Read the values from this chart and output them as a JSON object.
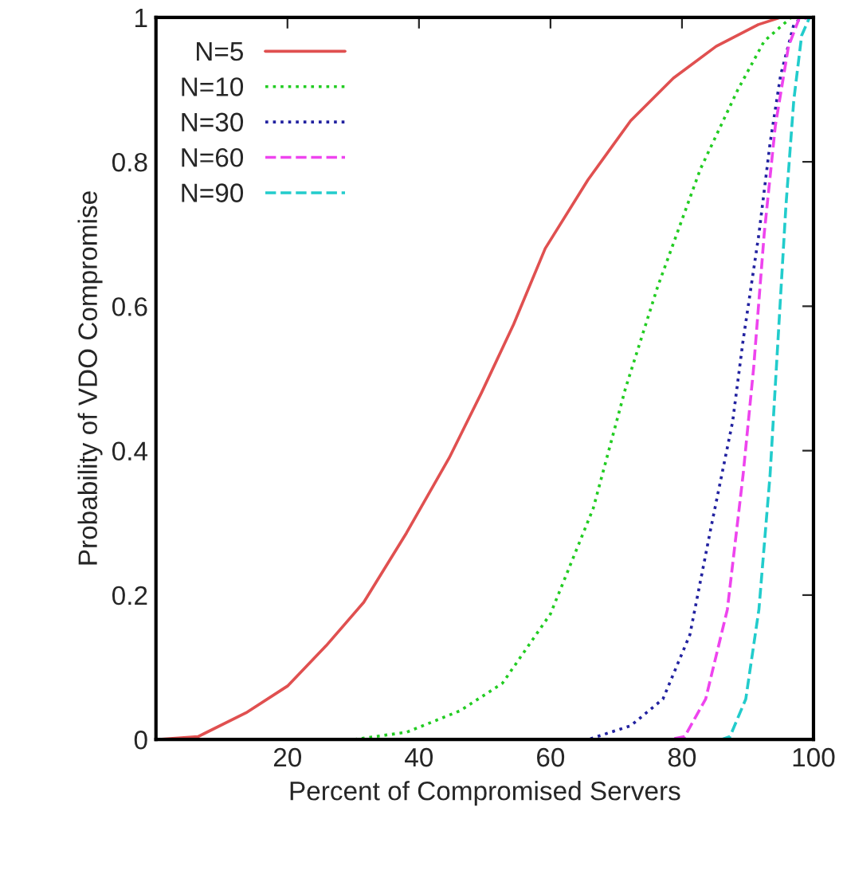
{
  "chart_data": {
    "type": "line",
    "xlabel": "Percent of Compromised Servers",
    "ylabel": "Probability of VDO Compromise",
    "xlim": [
      0,
      100
    ],
    "ylim": [
      0,
      1
    ],
    "xticks": [
      20,
      40,
      60,
      80,
      100
    ],
    "yticks": [
      0,
      0.2,
      0.4,
      0.6,
      0.8,
      1
    ],
    "grid": false,
    "legend": "top left",
    "marker": "none",
    "series": [
      {
        "name": "N=5",
        "color": "#e05050",
        "line_style": "solid",
        "x": [
          0,
          6.4,
          13.7,
          20,
          25.9,
          31.6,
          38.1,
          44.6,
          49.5,
          54.4,
          59.2,
          65.7,
          72.2,
          78.7,
          85.2,
          91.6,
          95,
          100
        ],
        "values": [
          0,
          0.004,
          0.037,
          0.074,
          0.13,
          0.19,
          0.286,
          0.39,
          0.48,
          0.575,
          0.68,
          0.775,
          0.857,
          0.916,
          0.96,
          0.99,
          1,
          1
        ]
      },
      {
        "name": "N=10",
        "color": "#22cc22",
        "line_style": "dotted",
        "x": [
          0,
          30,
          38.1,
          46.3,
          52.7,
          60,
          66.5,
          71.4,
          76.3,
          82.8,
          88.5,
          92.5,
          96.6,
          100
        ],
        "values": [
          0,
          0,
          0.01,
          0.04,
          0.078,
          0.174,
          0.32,
          0.486,
          0.627,
          0.79,
          0.9,
          0.967,
          1,
          1
        ]
      },
      {
        "name": "N=30",
        "color": "#2222a0",
        "line_style": "dotted",
        "x": [
          0,
          65.7,
          72.2,
          77.1,
          81.2,
          84.4,
          87.7,
          89.3,
          91.7,
          93.4,
          95,
          97,
          98.2,
          100
        ],
        "values": [
          0,
          0,
          0.019,
          0.056,
          0.145,
          0.293,
          0.44,
          0.553,
          0.7,
          0.826,
          0.92,
          0.99,
          1,
          1
        ]
      },
      {
        "name": "N=60",
        "color": "#ee44ee",
        "line_style": "dashed",
        "x": [
          0,
          78,
          80.4,
          83.6,
          86.9,
          89.3,
          90.9,
          92.5,
          94.2,
          96.2,
          97.8,
          100
        ],
        "values": [
          0,
          0,
          0.004,
          0.056,
          0.18,
          0.367,
          0.515,
          0.7,
          0.85,
          0.96,
          0.998,
          1
        ]
      },
      {
        "name": "N=90",
        "color": "#22cccc",
        "line_style": "dashed",
        "x": [
          0,
          86,
          87.3,
          89.7,
          91.7,
          93.4,
          94.6,
          95.8,
          97,
          98.2,
          99.4,
          100
        ],
        "values": [
          0,
          0,
          0.004,
          0.056,
          0.18,
          0.367,
          0.553,
          0.738,
          0.885,
          0.975,
          1,
          1
        ]
      }
    ]
  }
}
